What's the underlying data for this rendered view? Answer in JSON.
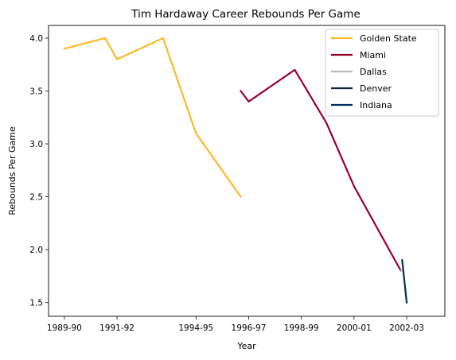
{
  "chart_data": {
    "type": "line",
    "title": "Tim Hardaway Career Rebounds Per Game",
    "xlabel": "Year",
    "ylabel": "Rebounds Per Game",
    "x_ticks": [
      "1989-90",
      "1991-92",
      "1994-95",
      "1996-97",
      "1998-99",
      "2000-01",
      "2002-03"
    ],
    "y_ticks": [
      "1.5",
      "2.0",
      "2.5",
      "3.0",
      "3.5",
      "4.0"
    ],
    "ylim": [
      1.37,
      4.12
    ],
    "grid": false,
    "legend_position": "top-right",
    "series": [
      {
        "name": "Golden State",
        "color": "#FDB927",
        "x": [
          "1989-90",
          "1990-91",
          "1991-92",
          "1992-93",
          "1994-95",
          "1995-96"
        ],
        "values": [
          3.9,
          4.0,
          3.8,
          4.0,
          3.1,
          2.5
        ]
      },
      {
        "name": "Miami",
        "color": "#98002E",
        "x": [
          "1995-96",
          "1996-97",
          "1997-98",
          "1998-99",
          "2000-01",
          "2001-02"
        ],
        "values": [
          3.5,
          3.4,
          3.7,
          3.2,
          2.6,
          1.8
        ]
      },
      {
        "name": "Dallas",
        "color": "#BBBBBB",
        "x": [
          "2001-02",
          "2001-02"
        ],
        "values": [
          1.8,
          1.8
        ]
      },
      {
        "name": "Denver",
        "color": "#0E2240",
        "x": [
          "2001-02",
          "2001-02"
        ],
        "values": [
          1.9,
          1.9
        ]
      },
      {
        "name": "Indiana",
        "color": "#002D62",
        "x": [
          "2001-02",
          "2002-03"
        ],
        "values": [
          1.9,
          1.5
        ]
      }
    ]
  }
}
